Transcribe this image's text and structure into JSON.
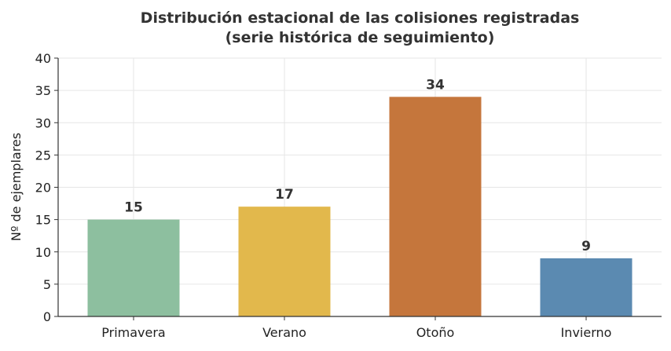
{
  "chart_data": {
    "type": "bar",
    "title_lines": [
      "Distribución estacional de las colisiones registradas",
      "(serie histórica de seguimiento)"
    ],
    "xlabel": "",
    "ylabel": "Nº de ejemplares",
    "categories": [
      "Primavera",
      "Verano",
      "Otoño",
      "Invierno"
    ],
    "values": [
      15,
      17,
      34,
      9
    ],
    "colors": [
      "#8dbf9f",
      "#e2b84c",
      "#c5763c",
      "#5b8ab1"
    ],
    "ylim": [
      0,
      40
    ],
    "yticks": [
      0,
      5,
      10,
      15,
      20,
      25,
      30,
      35,
      40
    ],
    "grid": true,
    "legend": "none"
  }
}
